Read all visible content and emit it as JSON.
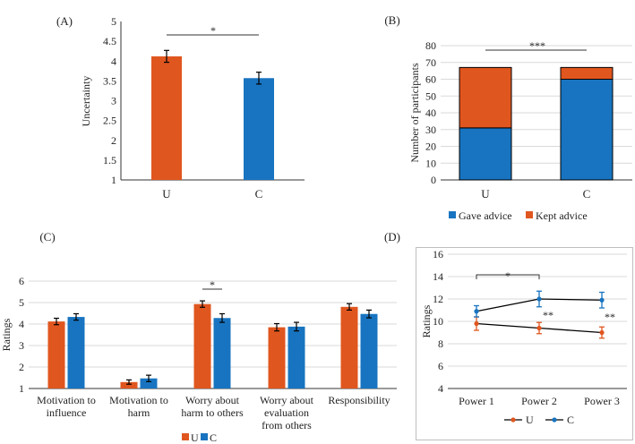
{
  "colors": {
    "U": "#E0561F",
    "C": "#1874C0",
    "axis": "#333333",
    "grid": "#D9D9D9",
    "errbar": "#000000"
  },
  "chart_data": [
    {
      "panel": "(A)",
      "type": "bar",
      "categories": [
        "U",
        "C"
      ],
      "values": [
        4.12,
        3.57
      ],
      "errors": [
        0.15,
        0.15
      ],
      "ylabel": "Uncertainty",
      "ylim": [
        1,
        5
      ],
      "yticks": [
        "1",
        "1.5",
        "2",
        "2.5",
        "3",
        "3.5",
        "4",
        "4.5",
        "5"
      ],
      "significance": "*"
    },
    {
      "panel": "(B)",
      "type": "bar",
      "stacked": true,
      "categories": [
        "U",
        "C"
      ],
      "series": [
        {
          "name": "Gave advice",
          "values": [
            31,
            60
          ]
        },
        {
          "name": "Kept advice",
          "values": [
            36,
            7
          ]
        }
      ],
      "ylabel": "Number of participants",
      "ylim": [
        0,
        80
      ],
      "yticks": [
        "0",
        "10",
        "20",
        "30",
        "40",
        "50",
        "60",
        "70",
        "80"
      ],
      "significance": "***",
      "legend": "bottom"
    },
    {
      "panel": "(C)",
      "type": "bar",
      "categories": [
        [
          "Motivation to",
          "influence"
        ],
        [
          "Motivation to",
          "harm"
        ],
        [
          "Worry about",
          "harm to others"
        ],
        [
          "Worry about",
          "evaluation",
          "from others"
        ],
        [
          "Responsibility"
        ]
      ],
      "series": [
        {
          "name": "U",
          "values": [
            4.12,
            1.3,
            4.93,
            3.85,
            4.8
          ],
          "errors": [
            0.15,
            0.1,
            0.15,
            0.17,
            0.15
          ]
        },
        {
          "name": "C",
          "values": [
            4.33,
            1.47,
            4.28,
            3.88,
            4.47
          ],
          "errors": [
            0.15,
            0.15,
            0.2,
            0.2,
            0.18
          ]
        }
      ],
      "ylabel": "Ratings",
      "ylim": [
        1,
        6
      ],
      "yticks": [
        "1",
        "2",
        "3",
        "4",
        "5",
        "6"
      ],
      "significance": {
        "category": 2,
        "label": "*"
      },
      "legend": "bottom"
    },
    {
      "panel": "(D)",
      "type": "line",
      "x": [
        "Power 1",
        "Power 2",
        "Power 3"
      ],
      "series": [
        {
          "name": "U",
          "values": [
            9.8,
            9.4,
            9.0
          ],
          "errors": [
            0.6,
            0.5,
            0.5
          ]
        },
        {
          "name": "C",
          "values": [
            10.9,
            12.0,
            11.9
          ],
          "errors": [
            0.5,
            0.7,
            0.7
          ]
        }
      ],
      "ylabel": "Ratings",
      "ylim": [
        4,
        16
      ],
      "yticks": [
        "4",
        "6",
        "8",
        "10",
        "12",
        "14",
        "16"
      ],
      "annotations": {
        "bracket": "*",
        "point2": "**",
        "point3": "**"
      },
      "legend": "bottom"
    }
  ]
}
